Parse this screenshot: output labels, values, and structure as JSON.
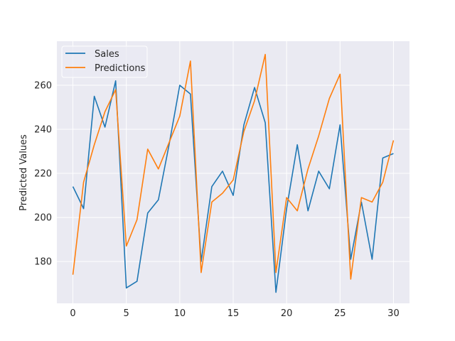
{
  "chart_data": {
    "type": "line",
    "title": "",
    "xlabel": "",
    "ylabel": "Predicted Values",
    "xlim": [
      -1.5,
      31.5
    ],
    "ylim": [
      161,
      280
    ],
    "xticks": [
      0,
      5,
      10,
      15,
      20,
      25,
      30
    ],
    "yticks": [
      180,
      200,
      220,
      240,
      260
    ],
    "grid": true,
    "legend_position": "top-left",
    "x": [
      0,
      1,
      2,
      3,
      4,
      5,
      6,
      7,
      8,
      9,
      10,
      11,
      12,
      13,
      14,
      15,
      16,
      17,
      18,
      19,
      20,
      21,
      22,
      23,
      24,
      25,
      26,
      27,
      28,
      29,
      30
    ],
    "series": [
      {
        "name": "Sales",
        "color": "#1f77b4",
        "values": [
          214,
          204,
          255,
          241,
          262,
          168,
          171,
          202,
          208,
          233,
          260,
          256,
          180,
          214,
          221,
          210,
          242,
          259,
          243,
          166,
          204,
          233,
          203,
          221,
          213,
          242,
          181,
          207,
          181,
          227,
          229
        ]
      },
      {
        "name": "Predictions",
        "color": "#ff7f0e",
        "values": [
          174,
          216,
          233,
          248,
          258,
          187,
          199,
          231,
          222,
          234,
          246,
          271,
          175,
          207,
          211,
          217,
          239,
          253,
          274,
          175,
          209,
          203,
          222,
          237,
          254,
          265,
          172,
          209,
          207,
          216,
          235
        ]
      }
    ]
  }
}
